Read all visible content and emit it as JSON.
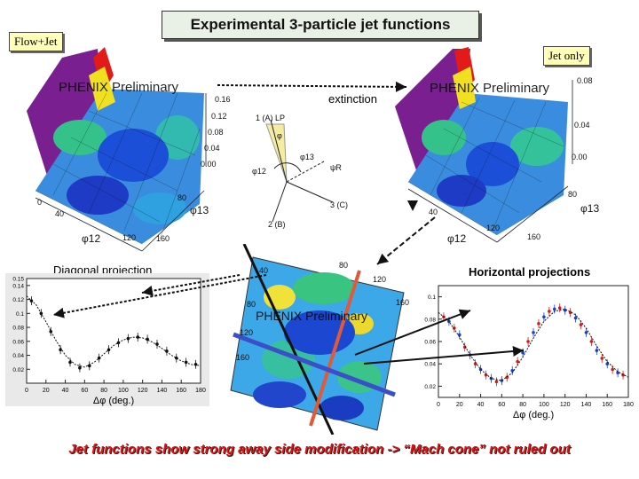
{
  "header": {
    "title": "Experimental 3-particle jet functions"
  },
  "tags": {
    "left": "Flow+Jet",
    "right": "Jet only"
  },
  "labels": {
    "prelim_left": "PHENIX Preliminary",
    "prelim_right": "PHENIX Preliminary",
    "prelim_center": "PHENIX Preliminary",
    "extinction": "extinction",
    "diagonal": "Diagonal projection",
    "horizontal": "Horizontal projections"
  },
  "left_surface": {
    "z_ticks": [
      "0.16",
      "0.12",
      "0.08",
      "0.04",
      "0.00"
    ],
    "phi_ticks": [
      "0",
      "40",
      "80",
      "120",
      "160"
    ],
    "phi12": "φ12",
    "phi13": "φ13"
  },
  "right_surface": {
    "z_ticks": [
      "0.08",
      "0.04",
      "0.00"
    ],
    "phi_ticks": [
      "40",
      "80",
      "120",
      "160"
    ],
    "phi12": "φ12",
    "phi13": "φ13"
  },
  "diagram": {
    "label_a": "1 (A) LP",
    "label_b": "2 (B)",
    "label_c": "3 (C)",
    "phi12": "φ12",
    "phi13": "φ13",
    "psi": "ψR",
    "phi_small": "φ"
  },
  "center_plot": {
    "ticks_top": [
      "40",
      "80",
      "120",
      "160"
    ],
    "ticks_left": [
      "80",
      "120",
      "160"
    ]
  },
  "chart_data": [
    {
      "type": "scatter",
      "title": "Diagonal projection",
      "xlabel": "Δφ (deg.)",
      "ylabel": "",
      "xlim": [
        0,
        180
      ],
      "ylim": [
        0.0,
        0.15
      ],
      "x_ticks": [
        "0",
        "20",
        "40",
        "60",
        "80",
        "100",
        "120",
        "140",
        "160",
        "180"
      ],
      "y_ticks": [
        "0.15",
        "0.14",
        "0.12",
        "0.1",
        "0.08",
        "0.06",
        "0.04",
        "0.02"
      ],
      "series": [
        {
          "name": "data",
          "x": [
            5,
            15,
            25,
            35,
            45,
            55,
            65,
            75,
            85,
            95,
            105,
            115,
            125,
            135,
            145,
            155,
            165,
            175
          ],
          "y": [
            0.118,
            0.1,
            0.074,
            0.048,
            0.03,
            0.022,
            0.025,
            0.036,
            0.048,
            0.058,
            0.064,
            0.066,
            0.063,
            0.056,
            0.046,
            0.036,
            0.03,
            0.027
          ]
        },
        {
          "name": "fit",
          "x": [
            0,
            10,
            20,
            30,
            40,
            50,
            60,
            70,
            80,
            90,
            100,
            110,
            120,
            130,
            140,
            150,
            160,
            170,
            180
          ],
          "y": [
            0.125,
            0.112,
            0.088,
            0.062,
            0.04,
            0.027,
            0.023,
            0.03,
            0.042,
            0.054,
            0.062,
            0.066,
            0.065,
            0.059,
            0.05,
            0.04,
            0.032,
            0.027,
            0.025
          ]
        }
      ]
    },
    {
      "type": "scatter",
      "title": "Horizontal projections",
      "xlabel": "Δφ (deg.)",
      "ylabel": "",
      "xlim": [
        0,
        180
      ],
      "ylim": [
        0.01,
        0.11
      ],
      "x_ticks": [
        "0",
        "20",
        "40",
        "60",
        "80",
        "100",
        "120",
        "140",
        "160",
        "180"
      ],
      "y_ticks": [
        "0.1",
        "0.08",
        "0.06",
        "0.04",
        "0.02"
      ],
      "series": [
        {
          "name": "set1",
          "x": [
            5,
            15,
            25,
            35,
            45,
            55,
            65,
            75,
            85,
            95,
            105,
            115,
            125,
            135,
            145,
            155,
            165,
            175
          ],
          "y": [
            0.082,
            0.072,
            0.055,
            0.04,
            0.03,
            0.024,
            0.028,
            0.042,
            0.06,
            0.076,
            0.087,
            0.09,
            0.086,
            0.075,
            0.06,
            0.045,
            0.035,
            0.03
          ]
        },
        {
          "name": "set2",
          "x": [
            10,
            20,
            30,
            40,
            50,
            60,
            70,
            80,
            90,
            100,
            110,
            120,
            130,
            140,
            150,
            160,
            170
          ],
          "y": [
            0.078,
            0.066,
            0.048,
            0.035,
            0.027,
            0.025,
            0.034,
            0.05,
            0.068,
            0.082,
            0.089,
            0.088,
            0.081,
            0.068,
            0.052,
            0.04,
            0.032
          ]
        },
        {
          "name": "fit",
          "x": [
            0,
            10,
            20,
            30,
            40,
            50,
            60,
            70,
            80,
            90,
            100,
            110,
            120,
            130,
            140,
            150,
            160,
            170,
            180
          ],
          "y": [
            0.086,
            0.078,
            0.064,
            0.048,
            0.035,
            0.027,
            0.025,
            0.032,
            0.046,
            0.063,
            0.078,
            0.087,
            0.089,
            0.084,
            0.072,
            0.056,
            0.042,
            0.033,
            0.028
          ]
        }
      ]
    }
  ],
  "footer": {
    "conclusion": "Jet functions show strong away side modification -> “Mach cone” not ruled out"
  }
}
